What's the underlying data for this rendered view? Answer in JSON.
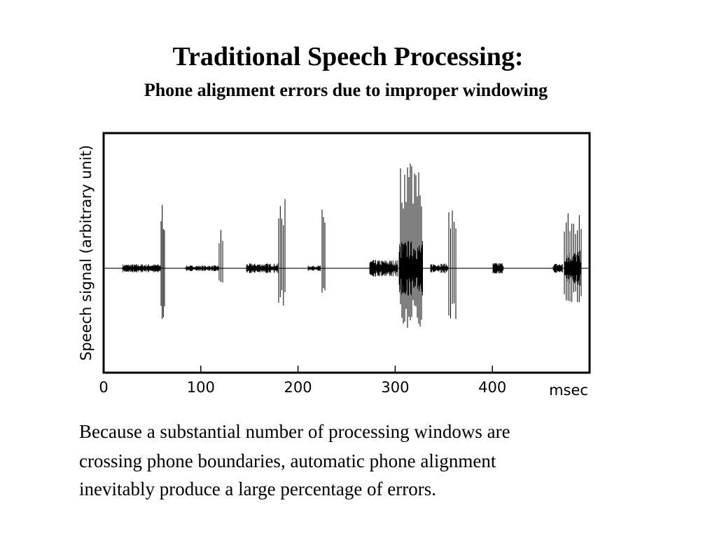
{
  "title": "Traditional Speech Processing:",
  "subtitle": "Phone alignment errors due to improper windowing",
  "figure": {
    "y_label": "Speech signal (arbitrary unit)",
    "x_unit": "msec",
    "xlim": [
      0,
      500
    ],
    "xticks": [
      0,
      100,
      200,
      300,
      400
    ]
  },
  "body": [
    "Because a substantial number of processing windows are",
    "crossing phone boundaries, automatic phone alignment",
    "inevitably produce a large percentage of errors."
  ]
}
